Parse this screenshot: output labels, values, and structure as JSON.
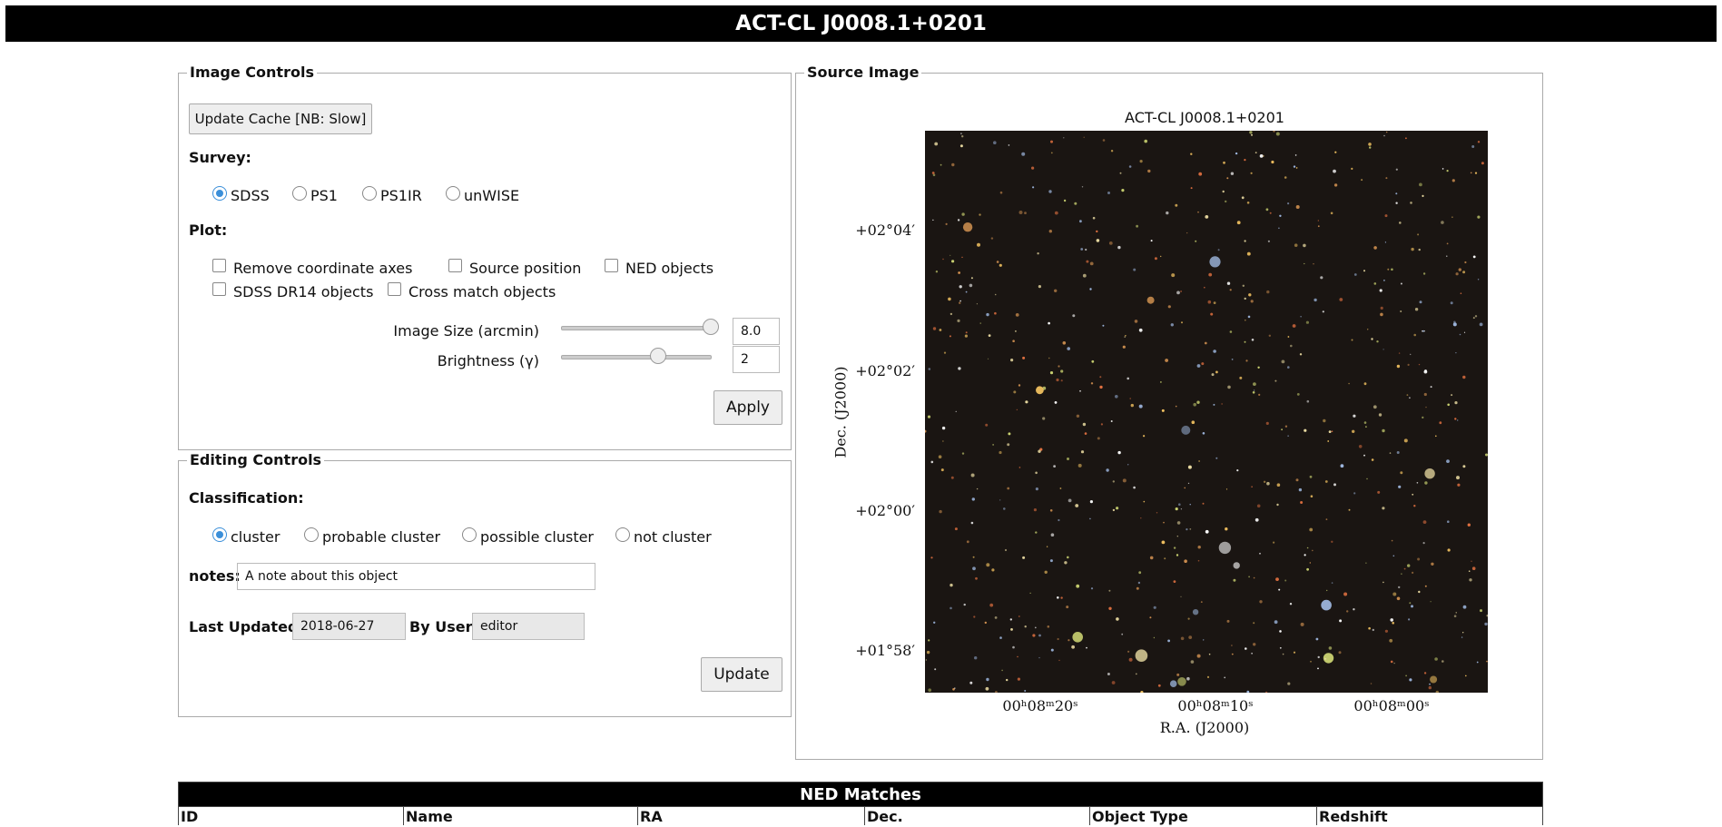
{
  "header": {
    "title": "ACT-CL J0008.1+0201"
  },
  "image_controls": {
    "legend": "Image Controls",
    "update_cache": "Update Cache [NB: Slow]",
    "survey_label": "Survey:",
    "surveys": [
      "SDSS",
      "PS1",
      "PS1IR",
      "unWISE"
    ],
    "plot_label": "Plot:",
    "plot_options": [
      "Remove coordinate axes",
      "Source position",
      "NED objects",
      "SDSS DR14 objects",
      "Cross match objects"
    ],
    "image_size_label": "Image Size (arcmin)",
    "image_size": "8.0",
    "brightness_label": "Brightness (γ)",
    "brightness": "2",
    "apply": "Apply"
  },
  "editing_controls": {
    "legend": "Editing Controls",
    "classification_label": "Classification:",
    "classifications": [
      "cluster",
      "probable cluster",
      "possible cluster",
      "not cluster"
    ],
    "notes_label": "notes:",
    "notes": "A note about this object",
    "last_updated_label": "Last Updated:",
    "last_updated": "2018-06-27",
    "by_user_label": "By User:",
    "by_user": "editor",
    "update": "Update"
  },
  "source_image": {
    "legend": "Source Image",
    "title": "ACT-CL J0008.1+0201",
    "yticks": [
      "+02°04′",
      "+02°02′",
      "+02°00′",
      "+01°58′"
    ],
    "ylabel": "Dec. (J2000)",
    "xticks": [
      "00ʰ08ᵐ20ˢ",
      "00ʰ08ᵐ10ˢ",
      "00ʰ08ᵐ00ˢ"
    ],
    "xlabel": "R.A. (J2000)"
  },
  "ned_table": {
    "title": "NED Matches",
    "columns": [
      "ID",
      "Name",
      "RA",
      "Dec.",
      "Object Type",
      "Redshift"
    ]
  }
}
